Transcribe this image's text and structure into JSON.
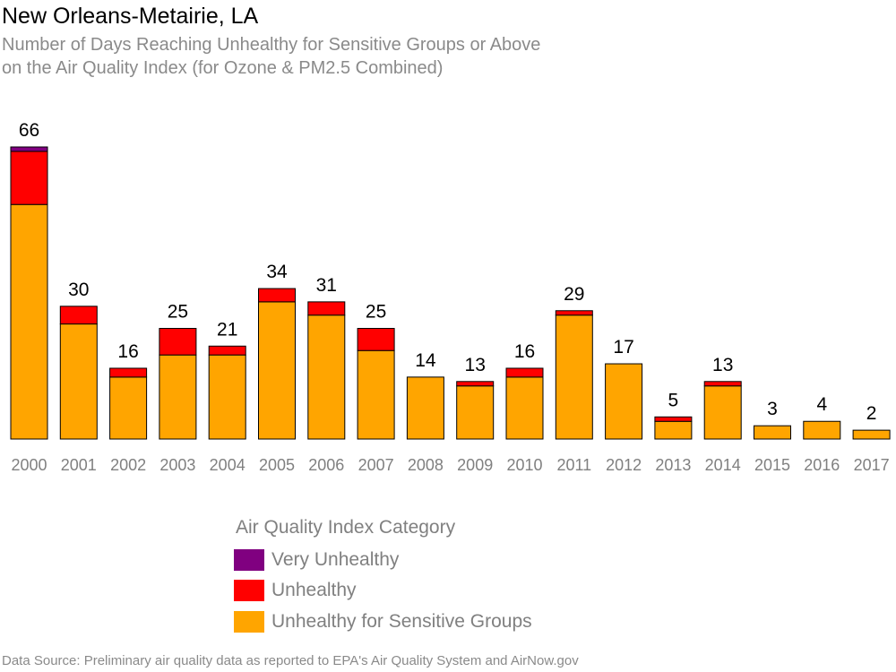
{
  "title": "New Orleans-Metairie, LA",
  "subtitle_line1": "Number of Days Reaching Unhealthy for Sensitive Groups or Above",
  "subtitle_line2": "on the Air Quality Index (for Ozone & PM2.5 Combined)",
  "legend": {
    "title": "Air Quality Index Category",
    "items": [
      {
        "label": "Very Unhealthy",
        "color": "#800080"
      },
      {
        "label": "Unhealthy",
        "color": "#ff0000"
      },
      {
        "label": "Unhealthy for Sensitive Groups",
        "color": "#ffa500"
      }
    ]
  },
  "source": "Data Source: Preliminary air quality data as reported to EPA's Air Quality System and AirNow.gov",
  "chart_data": {
    "type": "bar",
    "stacked": true,
    "categories": [
      "2000",
      "2001",
      "2002",
      "2003",
      "2004",
      "2005",
      "2006",
      "2007",
      "2008",
      "2009",
      "2010",
      "2011",
      "2012",
      "2013",
      "2014",
      "2015",
      "2016",
      "2017"
    ],
    "series": [
      {
        "name": "Unhealthy for Sensitive Groups",
        "color": "#ffa500",
        "values": [
          53,
          26,
          14,
          19,
          19,
          31,
          28,
          20,
          14,
          12,
          14,
          28,
          17,
          4,
          12,
          3,
          4,
          2
        ]
      },
      {
        "name": "Unhealthy",
        "color": "#ff0000",
        "values": [
          12,
          4,
          2,
          6,
          2,
          3,
          3,
          5,
          0,
          1,
          2,
          1,
          0,
          1,
          1,
          0,
          0,
          0
        ]
      },
      {
        "name": "Very Unhealthy",
        "color": "#800080",
        "values": [
          1,
          0,
          0,
          0,
          0,
          0,
          0,
          0,
          0,
          0,
          0,
          0,
          0,
          0,
          0,
          0,
          0,
          0
        ]
      }
    ],
    "totals": [
      66,
      30,
      16,
      25,
      21,
      34,
      31,
      25,
      14,
      13,
      16,
      29,
      17,
      5,
      13,
      3,
      4,
      2
    ],
    "ylim": [
      0,
      66
    ],
    "grid": false,
    "legend_position": "bottom"
  }
}
